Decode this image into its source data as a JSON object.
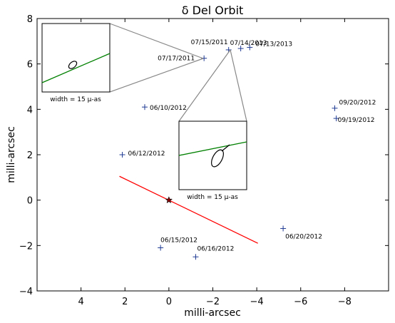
{
  "chart_data": {
    "type": "scatter",
    "title": "δ Del Orbit",
    "xlabel": "milli-arcsec",
    "ylabel": "milli-arcsec",
    "xlim": [
      6,
      -10
    ],
    "ylim": [
      -4,
      8
    ],
    "xticks": [
      4,
      2,
      0,
      -2,
      -4,
      -6,
      -8
    ],
    "yticks": [
      -4,
      -2,
      0,
      2,
      4,
      6,
      8
    ],
    "xtick_labels": [
      "4",
      "2",
      "0",
      "−2",
      "−4",
      "−6",
      "−8"
    ],
    "ytick_labels": [
      "−4",
      "−2",
      "0",
      "2",
      "4",
      "6",
      "8"
    ],
    "grid": false,
    "orbit": {
      "color": "#008000",
      "center": [
        -2.72,
        2.1
      ],
      "semi_major": 5.93,
      "semi_minor": 4.3,
      "rotation_deg": 61
    },
    "primary_star": {
      "x": 0,
      "y": 0,
      "color": "#8b0000"
    },
    "node_line": {
      "color": "#ff0000",
      "points": [
        [
          2.25,
          1.05
        ],
        [
          -4.05,
          -1.9
        ]
      ]
    },
    "observations": [
      {
        "label": "07/13/2013",
        "x": -3.68,
        "y": 6.73
      },
      {
        "label": "07/14/2013",
        "x": -3.27,
        "y": 6.68
      },
      {
        "label": "07/15/2011",
        "x": -2.72,
        "y": 6.62
      },
      {
        "label": "07/17/2011",
        "x": -1.6,
        "y": 6.25
      },
      {
        "label": "06/10/2012",
        "x": 1.1,
        "y": 4.1
      },
      {
        "label": "06/12/2012",
        "x": 2.12,
        "y": 2.0
      },
      {
        "label": "06/15/2012",
        "x": 0.38,
        "y": -2.1
      },
      {
        "label": "06/16/2012",
        "x": -1.22,
        "y": -2.5
      },
      {
        "label": "06/20/2012",
        "x": -5.2,
        "y": -1.25
      },
      {
        "label": "09/20/2012",
        "x": -7.55,
        "y": 4.05
      },
      {
        "label": "09/19/2012",
        "x": -7.62,
        "y": 3.6
      }
    ],
    "insets": [
      {
        "name": "inset-upper-left",
        "caption": "width = 15 μ-as"
      },
      {
        "name": "inset-center",
        "caption": "width = 15 μ-as"
      }
    ]
  }
}
